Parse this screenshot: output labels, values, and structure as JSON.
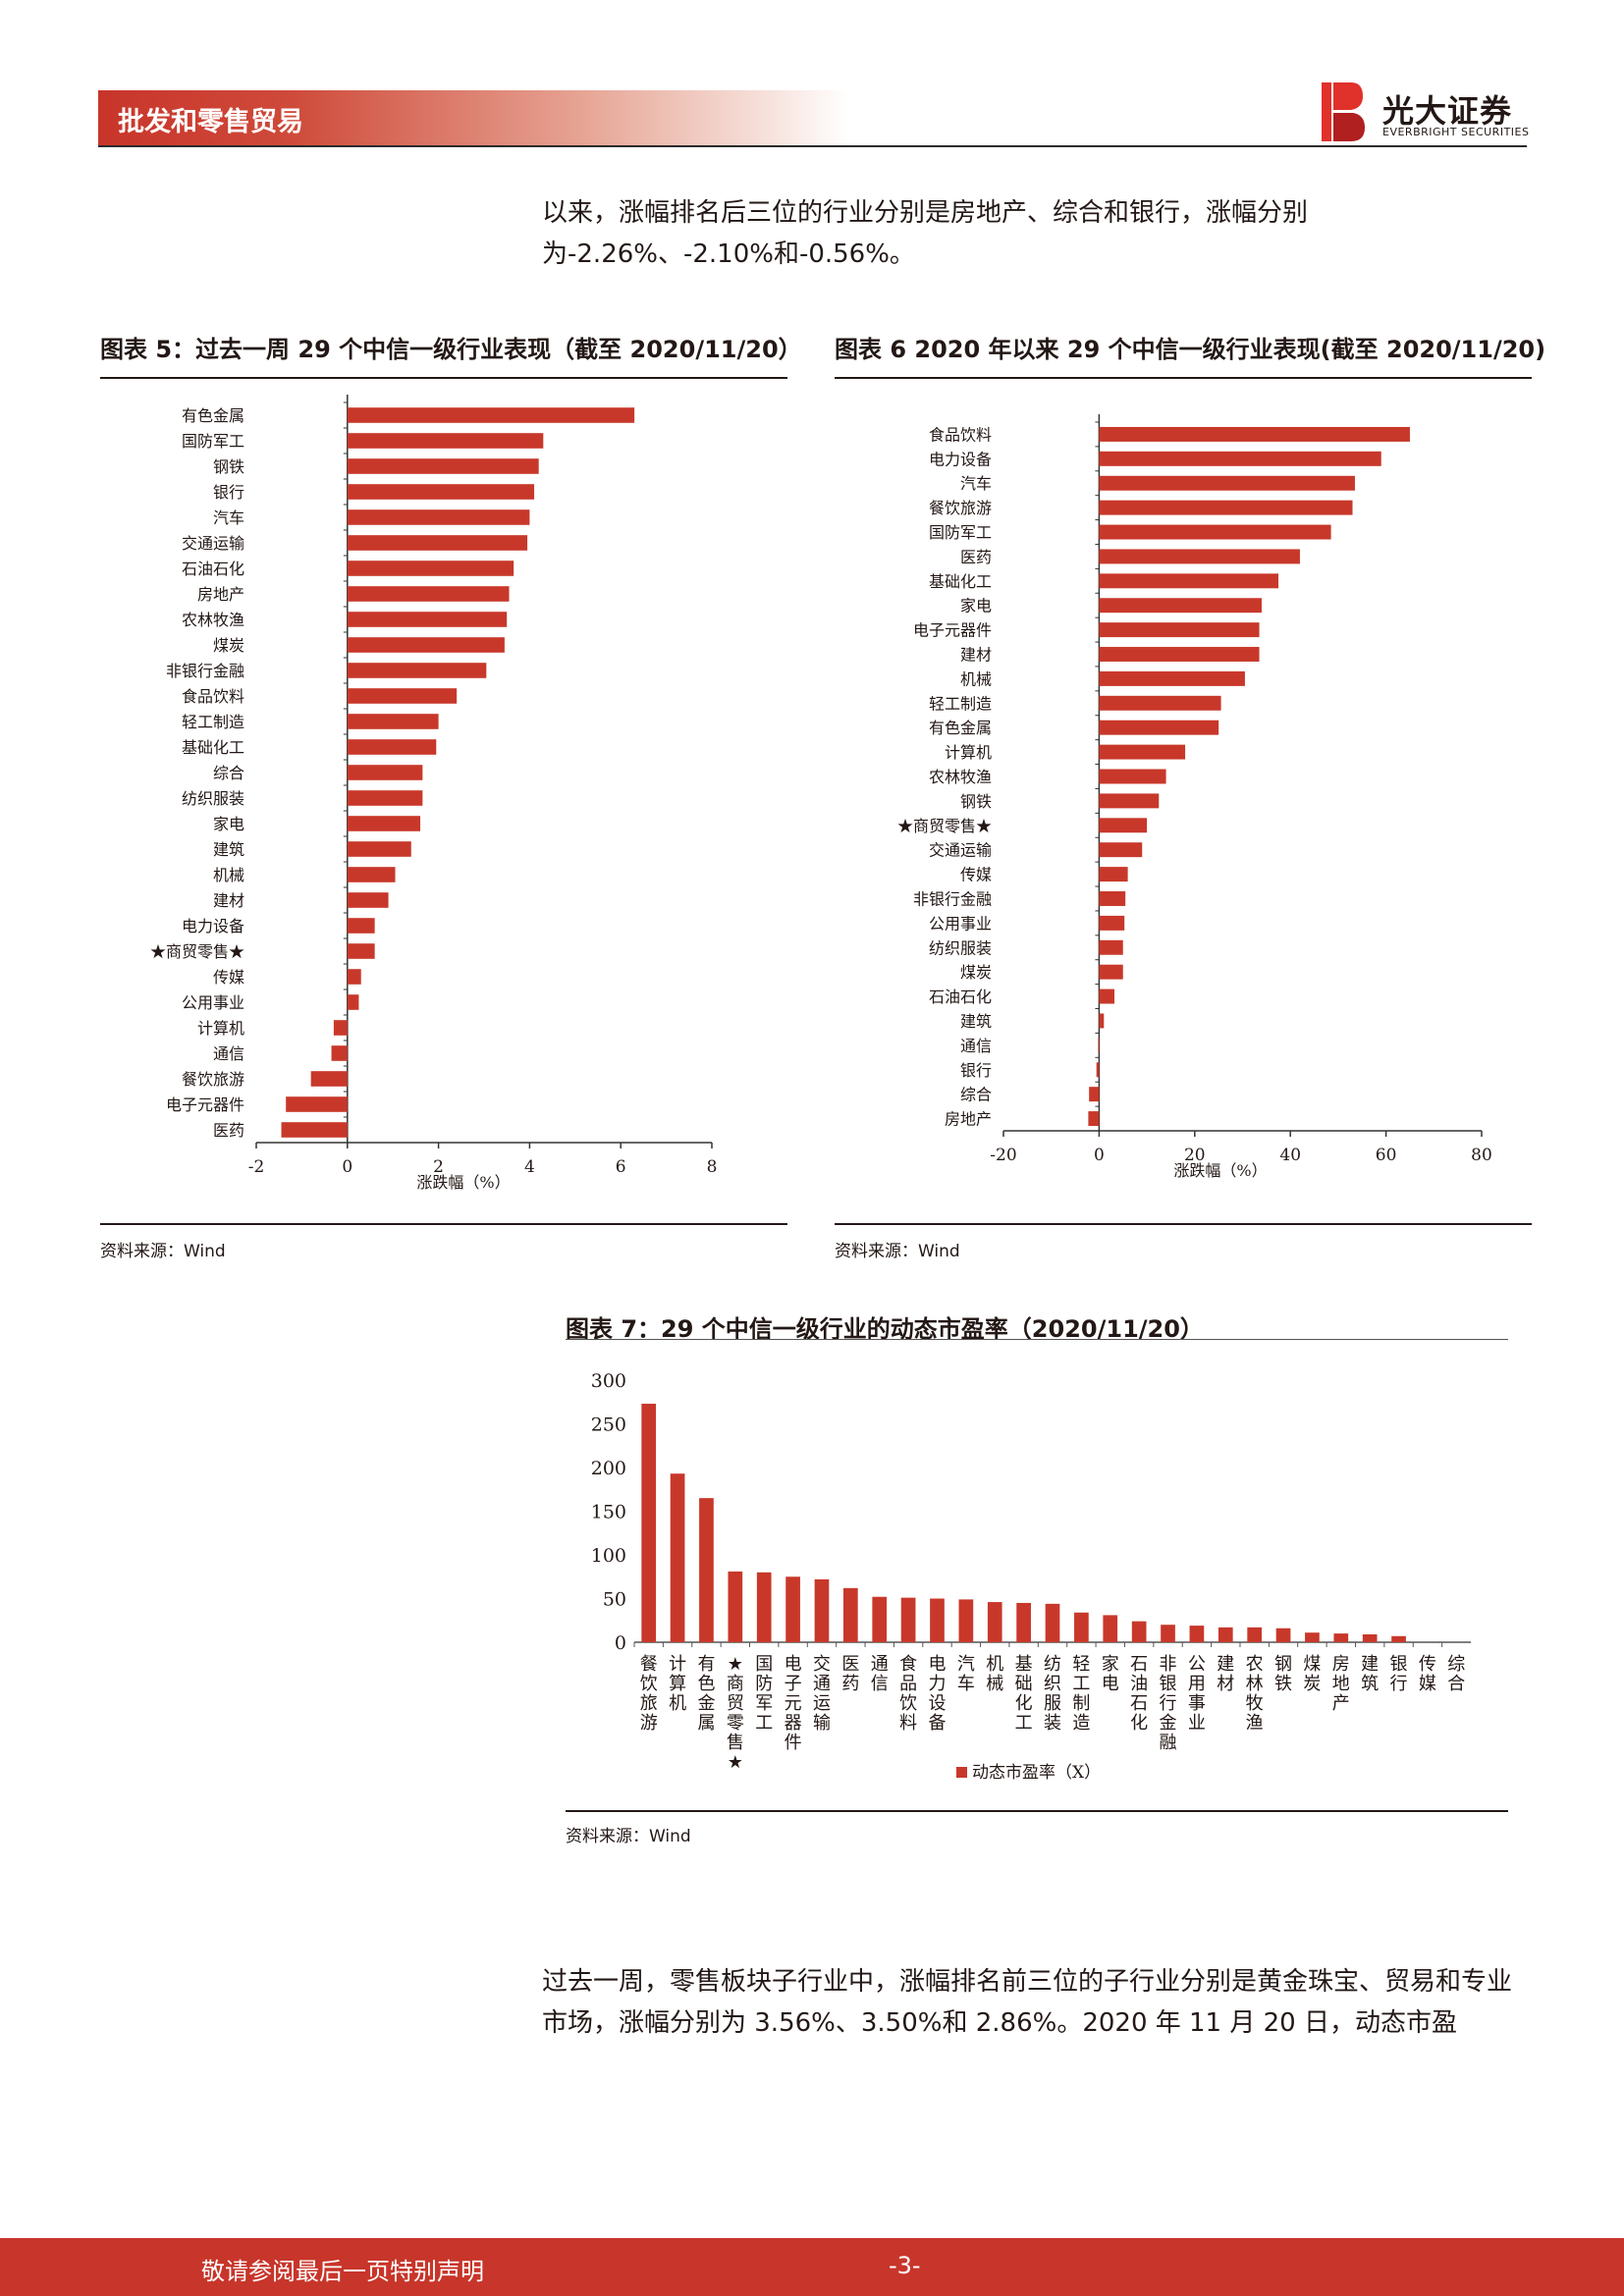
{
  "header": {
    "section_title": "批发和零售贸易"
  },
  "logo": {
    "name": "光大证券",
    "sub": "EVERBRIGHT SECURITIES",
    "colors": {
      "red": "#e0312b",
      "dark": "#b02020"
    }
  },
  "intro_paragraph": "以来，涨幅排名后三位的行业分别是房地产、综合和银行，涨幅分别为-2.26%、-2.10%和-0.56%。",
  "figure5": {
    "title": "图表 5：过去一周 29 个中信一级行业表现（截至 2020/11/20）",
    "source": "资料来源：Wind",
    "chart_data": {
      "type": "bar",
      "orientation": "horizontal",
      "categories": [
        "有色金属",
        "国防军工",
        "钢铁",
        "银行",
        "汽车",
        "交通运输",
        "石油石化",
        "房地产",
        "农林牧渔",
        "煤炭",
        "非银行金融",
        "食品饮料",
        "轻工制造",
        "基础化工",
        "综合",
        "纺织服装",
        "家电",
        "建筑",
        "机械",
        "建材",
        "电力设备",
        "★商贸零售★",
        "传媒",
        "公用事业",
        "计算机",
        "通信",
        "餐饮旅游",
        "电子元器件",
        "医药"
      ],
      "values": [
        6.3,
        4.3,
        4.2,
        4.1,
        4.0,
        3.95,
        3.65,
        3.55,
        3.5,
        3.45,
        3.05,
        2.4,
        2.0,
        1.95,
        1.65,
        1.65,
        1.6,
        1.4,
        1.05,
        0.9,
        0.6,
        0.6,
        0.3,
        0.25,
        -0.3,
        -0.35,
        -0.8,
        -1.35,
        -1.45
      ],
      "xlabel": "涨跌幅（%）",
      "xlim": [
        -2,
        8
      ],
      "xticks": [
        "-2",
        "0",
        "2",
        "4",
        "6",
        "8"
      ],
      "bar_color": "#c8382a"
    }
  },
  "figure6": {
    "title": "图表 6 2020 年以来 29 个中信一级行业表现(截至 2020/11/20)",
    "source": "资料来源：Wind",
    "chart_data": {
      "type": "bar",
      "orientation": "horizontal",
      "categories": [
        "食品饮料",
        "电力设备",
        "汽车",
        "餐饮旅游",
        "国防军工",
        "医药",
        "基础化工",
        "家电",
        "电子元器件",
        "建材",
        "机械",
        "轻工制造",
        "有色金属",
        "计算机",
        "农林牧渔",
        "钢铁",
        "★商贸零售★",
        "交通运输",
        "传媒",
        "非银行金融",
        "公用事业",
        "纺织服装",
        "煤炭",
        "石油石化",
        "建筑",
        "通信",
        "银行",
        "综合",
        "房地产"
      ],
      "values": [
        65,
        59,
        53.5,
        53,
        48.5,
        42,
        37.5,
        34,
        33.5,
        33.5,
        30.5,
        25.5,
        25,
        18,
        14,
        12.5,
        10,
        9,
        6,
        5.5,
        5.3,
        5,
        5,
        3.2,
        1.0,
        -0.2,
        -0.56,
        -2.1,
        -2.26
      ],
      "xlabel": "涨跌幅（%）",
      "xlim": [
        -20,
        80
      ],
      "xticks": [
        "-20",
        "0",
        "20",
        "40",
        "60",
        "80"
      ],
      "bar_color": "#c8382a"
    }
  },
  "figure7": {
    "title": "图表 7：29 个中信一级行业的动态市盈率（2020/11/20）",
    "source": "资料来源：Wind",
    "chart_data": {
      "type": "bar",
      "categories": [
        "餐饮旅游",
        "计算机",
        "有色金属",
        "★商贸零售★",
        "国防军工",
        "电子元器件",
        "交通运输",
        "医药",
        "通信",
        "食品饮料",
        "电力设备",
        "汽车",
        "机械",
        "基础化工",
        "纺织服装",
        "轻工制造",
        "家电",
        "石油石化",
        "非银行金融",
        "公用事业",
        "建材",
        "农林牧渔",
        "钢铁",
        "煤炭",
        "房地产",
        "建筑",
        "银行",
        "传媒",
        "综合"
      ],
      "values": [
        273,
        193,
        165,
        81,
        80,
        75,
        72,
        62,
        52,
        51,
        50,
        49,
        46,
        45,
        44,
        34,
        31,
        24,
        20,
        19,
        17,
        17,
        16,
        11,
        10,
        9,
        7,
        0,
        0
      ],
      "ylim": [
        0,
        300
      ],
      "yticks": [
        "0",
        "50",
        "100",
        "150",
        "200",
        "250",
        "300"
      ],
      "legend": "动态市盈率（X）",
      "bar_color": "#c8382a"
    }
  },
  "closing_paragraph": "过去一周，零售板块子行业中，涨幅排名前三位的子行业分别是黄金珠宝、贸易和专业市场，涨幅分别为 3.56%、3.50%和 2.86%。2020 年 11 月 20 日，动态市盈",
  "footer": {
    "note": "敬请参阅最后一页特别声明",
    "page": "-3-"
  }
}
